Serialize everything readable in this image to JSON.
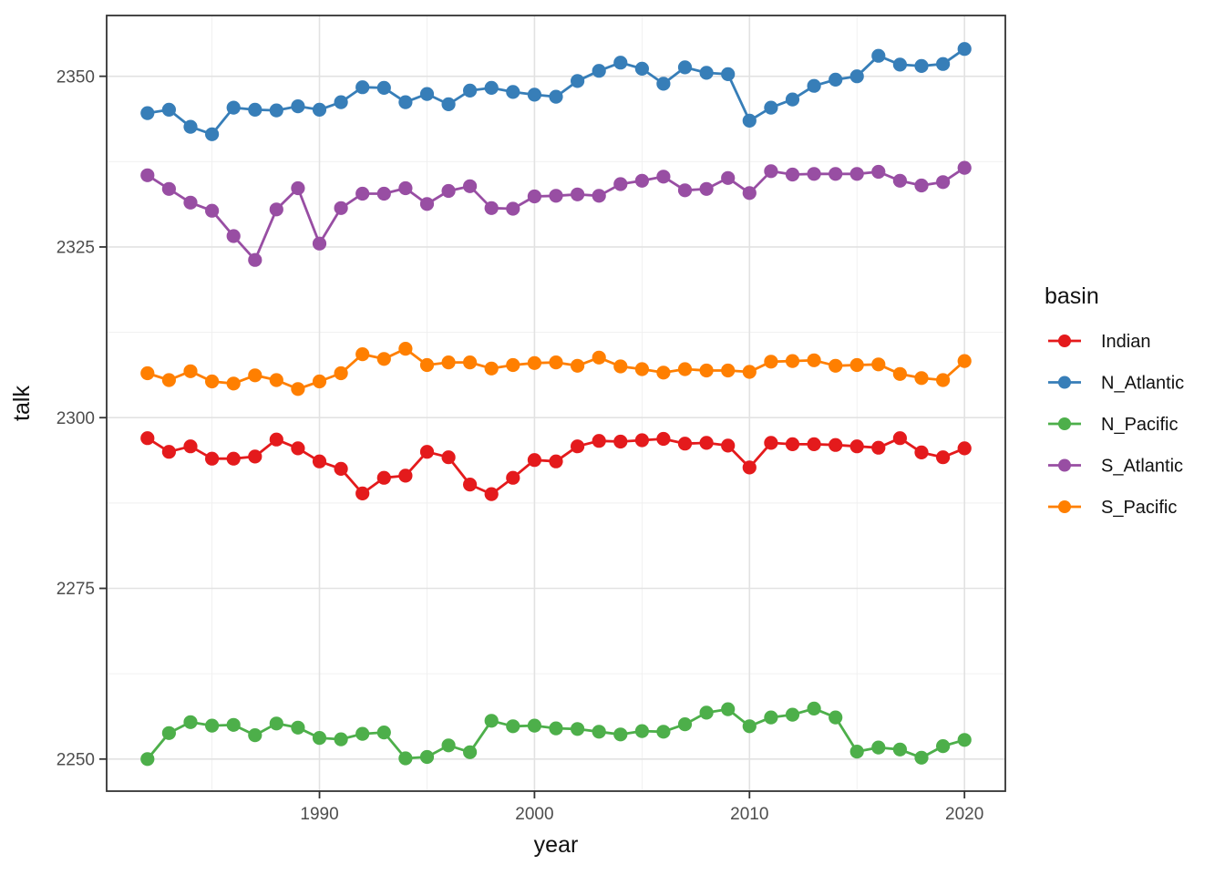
{
  "page": {
    "background_color": "#ffffff",
    "panel_background_color": "#ffffff",
    "panel_border_color": "#333333",
    "grid_major_color": "#e2e2e2",
    "grid_minor_color": "#efefef",
    "tick_color": "#333333",
    "tick_label_color": "#4d4d4d",
    "text_color": "#111111"
  },
  "chart_data": {
    "type": "line",
    "title": "",
    "xlabel": "year",
    "ylabel": "talk",
    "grid": true,
    "legend_position": "right",
    "legend_title": "basin",
    "xlim": [
      1980.1,
      2021.9
    ],
    "ylim": [
      2245.3,
      2358.9
    ],
    "x_ticks": [
      1990,
      2000,
      2010,
      2020
    ],
    "y_ticks": [
      2250,
      2275,
      2300,
      2325,
      2350
    ],
    "x_minor": [
      1985,
      1995,
      2005,
      2015
    ],
    "y_minor": [
      2262.5,
      2287.5,
      2312.5,
      2337.5
    ],
    "x": [
      1982,
      1983,
      1984,
      1985,
      1986,
      1987,
      1988,
      1989,
      1990,
      1991,
      1992,
      1993,
      1994,
      1995,
      1996,
      1997,
      1998,
      1999,
      2000,
      2001,
      2002,
      2003,
      2004,
      2005,
      2006,
      2007,
      2008,
      2009,
      2010,
      2011,
      2012,
      2013,
      2014,
      2015,
      2016,
      2017,
      2018,
      2019,
      2020
    ],
    "series": [
      {
        "name": "Indian",
        "color": "#E41A1C",
        "values": [
          2297.0,
          2295.0,
          2295.8,
          2294.0,
          2294.0,
          2294.3,
          2296.8,
          2295.5,
          2293.6,
          2292.5,
          2288.9,
          2291.2,
          2291.5,
          2295.0,
          2294.2,
          2290.2,
          2288.8,
          2291.2,
          2293.8,
          2293.6,
          2295.8,
          2296.6,
          2296.5,
          2296.7,
          2296.9,
          2296.2,
          2296.3,
          2295.9,
          2292.7,
          2296.3,
          2296.1,
          2296.1,
          2296.0,
          2295.8,
          2295.6,
          2297.0,
          2294.9,
          2294.2,
          2295.5
        ]
      },
      {
        "name": "N_Atlantic",
        "color": "#377EB8",
        "values": [
          2344.6,
          2345.1,
          2342.6,
          2341.5,
          2345.4,
          2345.1,
          2345.0,
          2345.6,
          2345.1,
          2346.2,
          2348.4,
          2348.3,
          2346.2,
          2347.4,
          2345.9,
          2347.9,
          2348.3,
          2347.7,
          2347.3,
          2347.0,
          2349.3,
          2350.8,
          2352.0,
          2351.1,
          2348.9,
          2351.3,
          2350.5,
          2350.3,
          2343.5,
          2345.4,
          2346.6,
          2348.6,
          2349.5,
          2350.0,
          2353.0,
          2351.7,
          2351.5,
          2351.8,
          2354.0
        ]
      },
      {
        "name": "N_Pacific",
        "color": "#4DAF4A",
        "values": [
          2250.0,
          2253.8,
          2255.4,
          2254.9,
          2255.0,
          2253.5,
          2255.2,
          2254.6,
          2253.1,
          2252.9,
          2253.7,
          2253.9,
          2250.1,
          2250.3,
          2252.0,
          2251.0,
          2255.6,
          2254.8,
          2254.9,
          2254.5,
          2254.4,
          2254.0,
          2253.6,
          2254.1,
          2254.0,
          2255.1,
          2256.8,
          2257.3,
          2254.8,
          2256.1,
          2256.5,
          2257.4,
          2256.1,
          2251.1,
          2251.7,
          2251.4,
          2250.2,
          2251.9,
          2252.8
        ]
      },
      {
        "name": "S_Atlantic",
        "color": "#984EA3",
        "values": [
          2335.5,
          2333.5,
          2331.5,
          2330.3,
          2326.6,
          2323.1,
          2330.5,
          2333.6,
          2325.5,
          2330.7,
          2332.8,
          2332.8,
          2333.6,
          2331.3,
          2333.2,
          2333.9,
          2330.7,
          2330.6,
          2332.4,
          2332.5,
          2332.7,
          2332.5,
          2334.2,
          2334.7,
          2335.3,
          2333.3,
          2333.5,
          2335.1,
          2332.9,
          2336.1,
          2335.6,
          2335.7,
          2335.7,
          2335.7,
          2336.0,
          2334.7,
          2334.0,
          2334.5,
          2336.6
        ]
      },
      {
        "name": "S_Pacific",
        "color": "#FF7F00",
        "values": [
          2306.5,
          2305.5,
          2306.8,
          2305.3,
          2305.0,
          2306.2,
          2305.5,
          2304.2,
          2305.3,
          2306.5,
          2309.3,
          2308.6,
          2310.1,
          2307.7,
          2308.1,
          2308.1,
          2307.2,
          2307.7,
          2308.0,
          2308.1,
          2307.6,
          2308.8,
          2307.5,
          2307.1,
          2306.6,
          2307.1,
          2306.9,
          2306.9,
          2306.7,
          2308.2,
          2308.3,
          2308.4,
          2307.6,
          2307.7,
          2307.8,
          2306.4,
          2305.8,
          2305.5,
          2308.3
        ]
      }
    ]
  }
}
